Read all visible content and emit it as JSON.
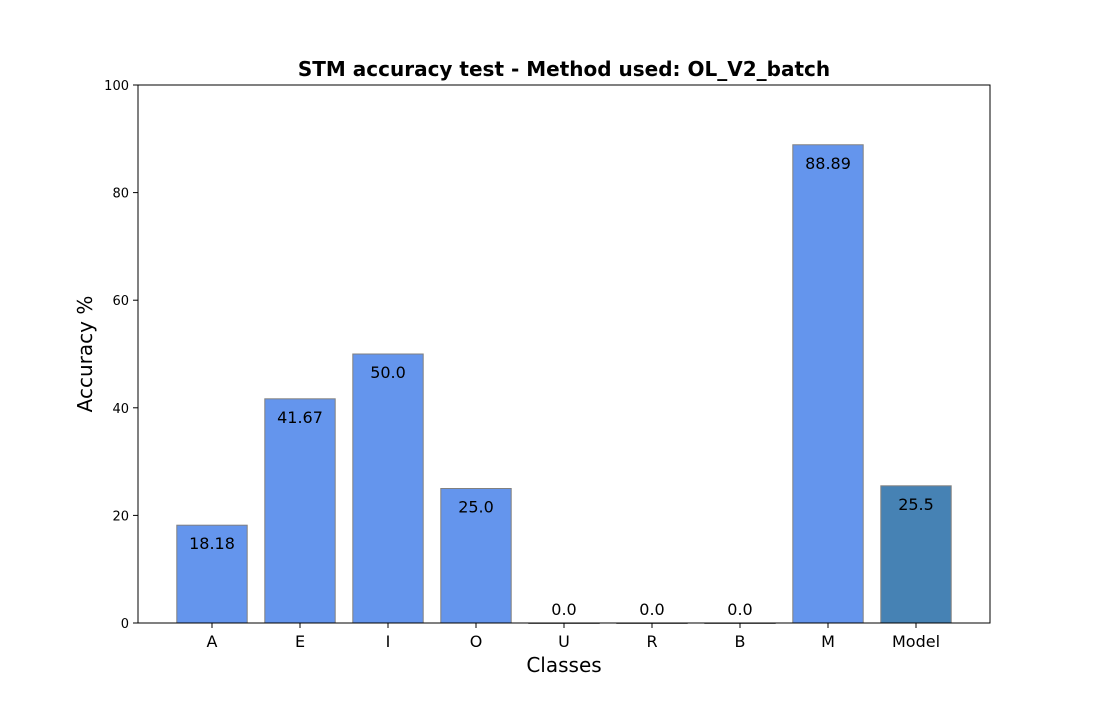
{
  "chart_data": {
    "type": "bar",
    "title": "STM accuracy test - Method used: OL_V2_batch",
    "xlabel": "Classes",
    "ylabel": "Accuracy %",
    "ylim": [
      0,
      100
    ],
    "yticks": [
      0,
      20,
      40,
      60,
      80,
      100
    ],
    "grid": false,
    "categories": [
      "A",
      "E",
      "I",
      "O",
      "U",
      "R",
      "B",
      "M",
      "Model"
    ],
    "values": [
      18.18,
      41.67,
      50.0,
      25.0,
      0.0,
      0.0,
      0.0,
      88.89,
      25.5
    ],
    "value_labels": [
      "18.18",
      "41.67",
      "50.0",
      "25.0",
      "0.0",
      "0.0",
      "0.0",
      "88.89",
      "25.5"
    ],
    "colors": {
      "class_bar": "#6495ed",
      "model_bar": "#4682b4",
      "bar_edge": "#808080",
      "axis": "#000000"
    }
  }
}
